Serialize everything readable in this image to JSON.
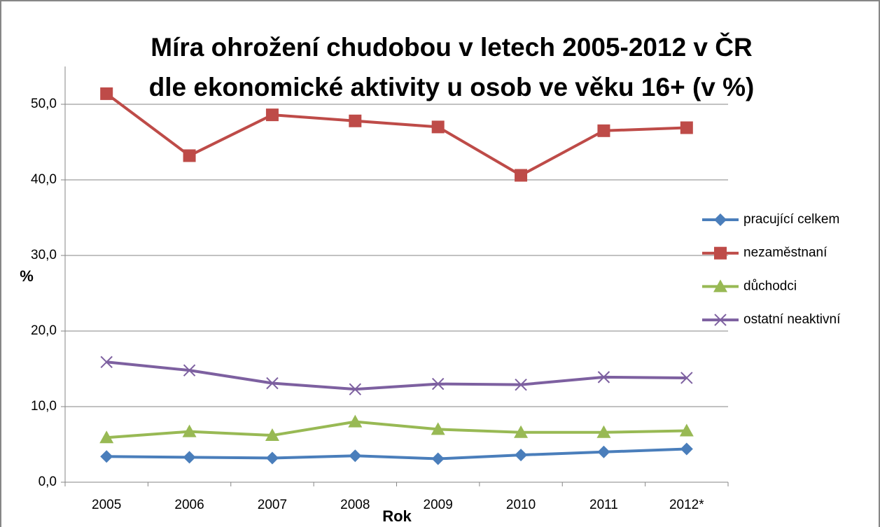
{
  "chart_data": {
    "type": "line",
    "title": [
      "Míra ohrožení chudobou v letech 2005-2012 v ČR",
      "dle ekonomické aktivity u osob ve věku 16+ (v %)"
    ],
    "x_label": "Rok",
    "y_label": "%",
    "categories": [
      "2005",
      "2006",
      "2007",
      "2008",
      "2009",
      "2010",
      "2011",
      "2012*"
    ],
    "series": [
      {
        "name": "pracující celkem",
        "color": "#4a7ebb",
        "marker": "diamond",
        "values": [
          3.4,
          3.3,
          3.2,
          3.5,
          3.1,
          3.6,
          4.0,
          4.4
        ]
      },
      {
        "name": "nezaměstnaní",
        "color": "#be4b48",
        "marker": "square",
        "values": [
          51.4,
          43.2,
          48.6,
          47.8,
          47.0,
          40.6,
          46.5,
          46.9
        ]
      },
      {
        "name": "důchodci",
        "color": "#98b954",
        "marker": "triangle",
        "values": [
          5.9,
          6.7,
          6.2,
          8.0,
          7.0,
          6.6,
          6.6,
          6.8
        ]
      },
      {
        "name": "ostatní neaktivní",
        "color": "#7d60a0",
        "marker": "x",
        "values": [
          15.9,
          14.8,
          13.1,
          12.3,
          13.0,
          12.9,
          13.9,
          13.8
        ]
      }
    ],
    "ylim": [
      0,
      55
    ],
    "yticks": [
      {
        "value": 0,
        "label": "0,0"
      },
      {
        "value": 10,
        "label": "10,0"
      },
      {
        "value": 20,
        "label": "20,0"
      },
      {
        "value": 30,
        "label": "30,0"
      },
      {
        "value": 40,
        "label": "40,0"
      },
      {
        "value": 50,
        "label": "50,0"
      }
    ],
    "grid": true,
    "legend": "right"
  }
}
